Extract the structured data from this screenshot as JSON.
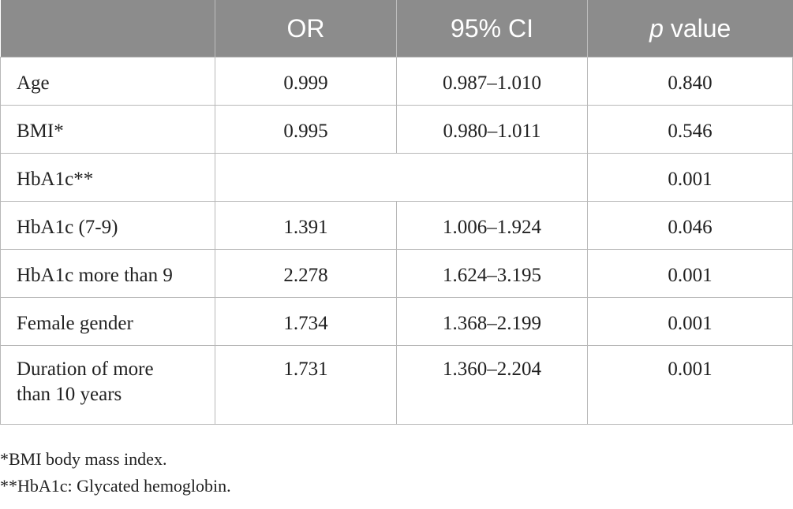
{
  "table": {
    "headers": {
      "col1": "",
      "or": "OR",
      "ci": "95% CI",
      "p_italic": "p",
      "p_rest": " value"
    },
    "rows": [
      {
        "label": "Age",
        "or": "0.999",
        "ci": "0.987–1.010",
        "p": "0.840"
      },
      {
        "label": "BMI*",
        "or": "0.995",
        "ci": "0.980–1.011",
        "p": "0.546"
      },
      {
        "label": "HbA1c**",
        "or": "",
        "ci": "",
        "p": "0.001"
      },
      {
        "label": "HbA1c (7-9)",
        "or": "1.391",
        "ci": "1.006–1.924",
        "p": "0.046"
      },
      {
        "label": "HbA1c more than 9",
        "or": "2.278",
        "ci": "1.624–3.195",
        "p": "0.001"
      },
      {
        "label": "Female gender",
        "or": "1.734",
        "ci": "1.368–2.199",
        "p": "0.001"
      },
      {
        "label_line1": "Duration of more",
        "label_line2": "than 10 years",
        "or": "1.731",
        "ci": "1.360–2.204",
        "p": "0.001"
      }
    ]
  },
  "footnotes": [
    "*BMI body mass index.",
    "**HbA1c: Glycated hemoglobin."
  ],
  "colors": {
    "header_bg": "#8c8c8c",
    "header_text": "#ffffff",
    "border": "#b8b8b8"
  }
}
